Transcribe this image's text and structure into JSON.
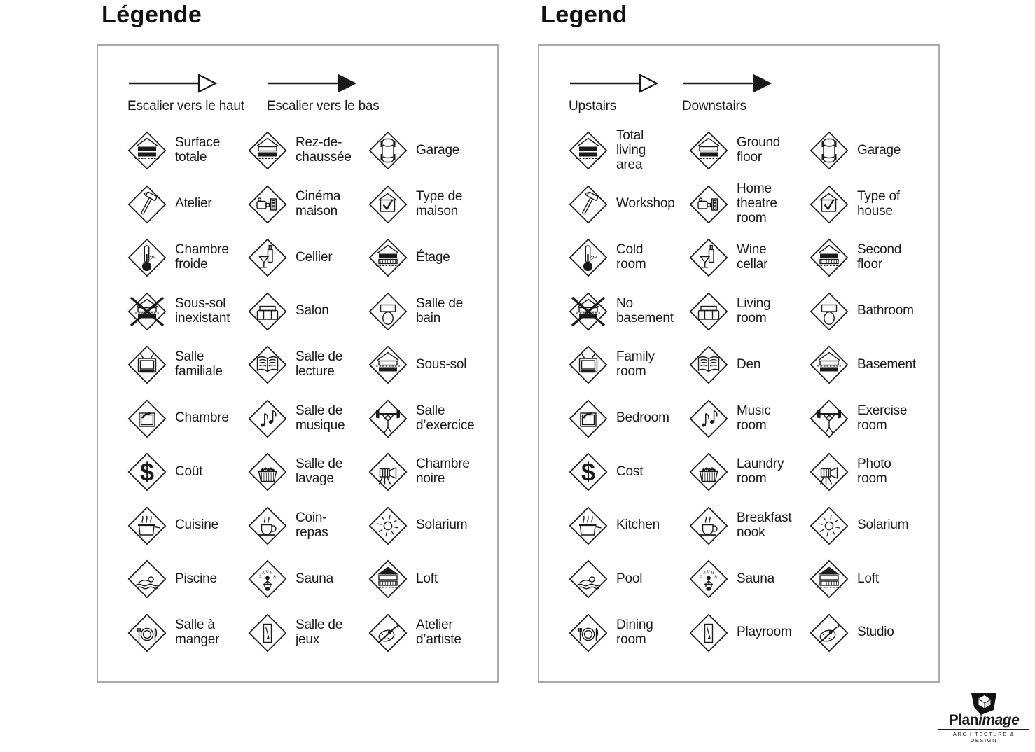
{
  "colors": {
    "ink": "#1a1a1a",
    "panel_border": "#a9a9a9",
    "background": "#ffffff"
  },
  "panels": [
    {
      "id": "fr",
      "title": "Légende",
      "arrows": [
        {
          "icon": "arrow-open",
          "label": "Escalier vers le haut"
        },
        {
          "icon": "arrow-filled",
          "label": "Escalier vers le bas"
        }
      ],
      "items": [
        {
          "icon": "house-total",
          "label": "Surface\ntotale"
        },
        {
          "icon": "house-ground",
          "label": "Rez-de-\nchaussée"
        },
        {
          "icon": "garage",
          "label": "Garage"
        },
        {
          "icon": "hammer",
          "label": "Atelier"
        },
        {
          "icon": "projector",
          "label": "Cinéma\nmaison"
        },
        {
          "icon": "house-check",
          "label": "Type de\nmaison"
        },
        {
          "icon": "thermometer",
          "label": "Chambre\nfroide"
        },
        {
          "icon": "wine",
          "label": "Cellier"
        },
        {
          "icon": "house-second",
          "label": "Étage"
        },
        {
          "icon": "no-basement",
          "label": "Sous-sol\ninexistant"
        },
        {
          "icon": "sofa",
          "label": "Salon"
        },
        {
          "icon": "toilet",
          "label": "Salle de\nbain"
        },
        {
          "icon": "tv",
          "label": "Salle\nfamiliale"
        },
        {
          "icon": "book",
          "label": "Salle de\nlecture"
        },
        {
          "icon": "house-basement",
          "label": "Sous-sol"
        },
        {
          "icon": "window",
          "label": "Chambre"
        },
        {
          "icon": "music",
          "label": "Salle de\nmusique"
        },
        {
          "icon": "exercise",
          "label": "Salle\nd’exercice"
        },
        {
          "icon": "dollar",
          "label": "Coût"
        },
        {
          "icon": "laundry",
          "label": "Salle de\nlavage"
        },
        {
          "icon": "camera",
          "label": "Chambre\nnoire"
        },
        {
          "icon": "pot",
          "label": "Cuisine"
        },
        {
          "icon": "cup",
          "label": "Coin-\nrepas"
        },
        {
          "icon": "sun",
          "label": "Solarium"
        },
        {
          "icon": "swimmer",
          "label": "Piscine"
        },
        {
          "icon": "sauna",
          "label": "Sauna"
        },
        {
          "icon": "house-loft",
          "label": "Loft"
        },
        {
          "icon": "dining",
          "label": "Salle à\nmanger"
        },
        {
          "icon": "playroom",
          "label": "Salle de\njeux"
        },
        {
          "icon": "palette",
          "label": "Atelier\nd’artiste"
        }
      ]
    },
    {
      "id": "en",
      "title": "Legend",
      "arrows": [
        {
          "icon": "arrow-open",
          "label": "Upstairs"
        },
        {
          "icon": "arrow-filled",
          "label": "Downstairs"
        }
      ],
      "items": [
        {
          "icon": "house-total",
          "label": "Total\nliving\narea"
        },
        {
          "icon": "house-ground",
          "label": "Ground\nfloor"
        },
        {
          "icon": "garage",
          "label": "Garage"
        },
        {
          "icon": "hammer",
          "label": "Workshop"
        },
        {
          "icon": "projector",
          "label": "Home\ntheatre\nroom"
        },
        {
          "icon": "house-check",
          "label": "Type of\nhouse"
        },
        {
          "icon": "thermometer",
          "label": "Cold\nroom"
        },
        {
          "icon": "wine",
          "label": "Wine\ncellar"
        },
        {
          "icon": "house-second",
          "label": "Second\nfloor"
        },
        {
          "icon": "no-basement",
          "label": "No\nbasement"
        },
        {
          "icon": "sofa",
          "label": "Living\nroom"
        },
        {
          "icon": "toilet",
          "label": "Bathroom"
        },
        {
          "icon": "tv",
          "label": "Family\nroom"
        },
        {
          "icon": "book",
          "label": "Den"
        },
        {
          "icon": "house-basement",
          "label": "Basement"
        },
        {
          "icon": "window",
          "label": "Bedroom"
        },
        {
          "icon": "music",
          "label": "Music\nroom"
        },
        {
          "icon": "exercise",
          "label": "Exercise\nroom"
        },
        {
          "icon": "dollar",
          "label": "Cost"
        },
        {
          "icon": "laundry",
          "label": "Laundry\nroom"
        },
        {
          "icon": "camera",
          "label": "Photo\nroom"
        },
        {
          "icon": "pot",
          "label": "Kitchen"
        },
        {
          "icon": "cup",
          "label": "Breakfast\nnook"
        },
        {
          "icon": "sun",
          "label": "Solarium"
        },
        {
          "icon": "swimmer",
          "label": "Pool"
        },
        {
          "icon": "sauna",
          "label": "Sauna"
        },
        {
          "icon": "house-loft",
          "label": "Loft"
        },
        {
          "icon": "dining",
          "label": "Dining\nroom"
        },
        {
          "icon": "playroom",
          "label": "Playroom"
        },
        {
          "icon": "palette",
          "label": "Studio"
        }
      ]
    }
  ],
  "logo": {
    "brand_bold": "Plan",
    "brand_italic": "image",
    "tagline": "ARCHITECTURE & DESIGN"
  }
}
